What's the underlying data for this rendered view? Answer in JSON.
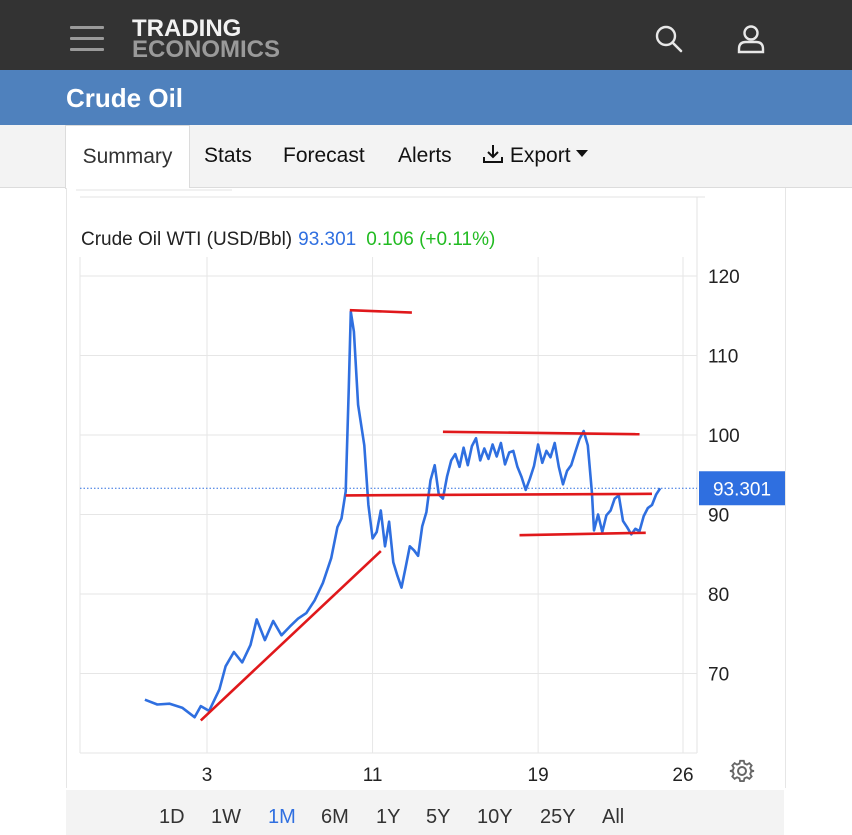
{
  "header": {
    "logo_line1": "TRADING",
    "logo_line2": "ECONOMICS",
    "icons": [
      "hamburger-menu-icon",
      "search-icon",
      "user-icon"
    ]
  },
  "page": {
    "title": "Crude Oil"
  },
  "tabs": [
    {
      "label": "Summary",
      "active": true
    },
    {
      "label": "Stats"
    },
    {
      "label": "Forecast"
    },
    {
      "label": "Alerts"
    },
    {
      "label": "Export",
      "icon": "download-icon",
      "dropdown": true
    }
  ],
  "quote": {
    "name": "Crude Oil WTI (USD/Bbl)",
    "price": "93.301",
    "change": "0.106",
    "change_pct": "(+0.11%)"
  },
  "colors": {
    "accent": "#4f81bd",
    "line": "#2f6fe0",
    "positive": "#22bb22",
    "annotation": "#e0181b"
  },
  "chart_data": {
    "type": "line",
    "title": "Crude Oil WTI (USD/Bbl)",
    "x_ticks": [
      "3",
      "11",
      "19",
      "26"
    ],
    "y_ticks": [
      70,
      80,
      90,
      100,
      110,
      120
    ],
    "ylim": [
      60,
      125
    ],
    "last_value_label": "93.301",
    "grid": true,
    "series": [
      {
        "values": [
          [
            -3.0,
            66.7
          ],
          [
            -2.4,
            66.1
          ],
          [
            -1.8,
            66.2
          ],
          [
            -1.2,
            65.7
          ],
          [
            -0.6,
            64.5
          ],
          [
            -0.3,
            65.9
          ],
          [
            0.1,
            65.3
          ],
          [
            0.6,
            68.0
          ],
          [
            0.9,
            70.9
          ],
          [
            1.3,
            72.7
          ],
          [
            1.7,
            71.4
          ],
          [
            2.1,
            73.6
          ],
          [
            2.4,
            76.8
          ],
          [
            2.8,
            74.2
          ],
          [
            3.2,
            76.6
          ],
          [
            3.6,
            74.8
          ],
          [
            4.0,
            75.9
          ],
          [
            4.4,
            76.9
          ],
          [
            4.8,
            77.6
          ],
          [
            5.2,
            79.2
          ],
          [
            5.6,
            81.4
          ],
          [
            6.0,
            84.5
          ],
          [
            6.3,
            88.4
          ],
          [
            6.5,
            89.5
          ],
          [
            6.7,
            92.9
          ],
          [
            6.85,
            106.0
          ],
          [
            6.95,
            115.5
          ],
          [
            7.1,
            113.0
          ],
          [
            7.3,
            103.8
          ],
          [
            7.6,
            98.7
          ],
          [
            7.8,
            91.2
          ],
          [
            8.0,
            87.0
          ],
          [
            8.2,
            87.8
          ],
          [
            8.4,
            90.5
          ],
          [
            8.6,
            86.0
          ],
          [
            8.8,
            89.1
          ],
          [
            9.0,
            84.0
          ],
          [
            9.2,
            82.3
          ],
          [
            9.4,
            80.8
          ],
          [
            9.6,
            83.4
          ],
          [
            9.8,
            86.0
          ],
          [
            10.0,
            85.5
          ],
          [
            10.2,
            84.8
          ],
          [
            10.4,
            88.5
          ],
          [
            10.6,
            90.3
          ],
          [
            10.8,
            94.3
          ],
          [
            11.0,
            96.2
          ],
          [
            11.2,
            92.5
          ],
          [
            11.4,
            92.0
          ],
          [
            11.6,
            94.8
          ],
          [
            11.8,
            96.8
          ],
          [
            12.0,
            97.6
          ],
          [
            12.2,
            96.0
          ],
          [
            12.4,
            98.4
          ],
          [
            12.6,
            96.2
          ],
          [
            12.8,
            98.6
          ],
          [
            13.0,
            99.6
          ],
          [
            13.2,
            96.8
          ],
          [
            13.4,
            98.3
          ],
          [
            13.6,
            97.0
          ],
          [
            13.8,
            98.8
          ],
          [
            14.0,
            97.3
          ],
          [
            14.2,
            99.0
          ],
          [
            14.4,
            96.3
          ],
          [
            14.6,
            97.8
          ],
          [
            14.8,
            98.0
          ],
          [
            15.0,
            96.0
          ],
          [
            15.2,
            94.7
          ],
          [
            15.4,
            93.1
          ],
          [
            15.6,
            94.5
          ],
          [
            15.8,
            96.1
          ],
          [
            16.0,
            98.8
          ],
          [
            16.2,
            96.5
          ],
          [
            16.4,
            98.0
          ],
          [
            16.6,
            97.2
          ],
          [
            16.8,
            99.0
          ],
          [
            17.0,
            96.0
          ],
          [
            17.2,
            93.8
          ],
          [
            17.4,
            95.5
          ],
          [
            17.6,
            96.2
          ],
          [
            17.8,
            97.9
          ],
          [
            18.0,
            99.5
          ],
          [
            18.2,
            100.5
          ],
          [
            18.4,
            98.7
          ],
          [
            18.6,
            92.8
          ],
          [
            18.7,
            88.0
          ],
          [
            18.9,
            90.0
          ],
          [
            19.1,
            87.8
          ],
          [
            19.3,
            89.9
          ],
          [
            19.5,
            90.5
          ],
          [
            19.7,
            92.0
          ],
          [
            19.9,
            92.4
          ],
          [
            20.1,
            89.2
          ],
          [
            20.3,
            88.4
          ],
          [
            20.5,
            87.5
          ],
          [
            20.7,
            88.2
          ],
          [
            20.9,
            87.9
          ],
          [
            21.1,
            89.8
          ],
          [
            21.3,
            90.8
          ],
          [
            21.5,
            91.2
          ],
          [
            21.7,
            92.5
          ],
          [
            21.9,
            93.301
          ]
        ]
      }
    ],
    "annotations": [
      {
        "type": "trendline",
        "from": [
          -0.3,
          64.1
        ],
        "to": [
          8.4,
          85.4
        ]
      },
      {
        "type": "horizontal",
        "from": [
          6.9,
          115.7
        ],
        "to": [
          9.9,
          115.4
        ]
      },
      {
        "type": "horizontal",
        "from": [
          11.4,
          100.4
        ],
        "to": [
          20.9,
          100.1
        ]
      },
      {
        "type": "horizontal",
        "from": [
          6.7,
          92.4
        ],
        "to": [
          21.5,
          92.6
        ]
      },
      {
        "type": "horizontal",
        "from": [
          15.1,
          87.4
        ],
        "to": [
          21.2,
          87.7
        ]
      }
    ]
  },
  "ranges": [
    {
      "label": "1D"
    },
    {
      "label": "1W"
    },
    {
      "label": "1M",
      "active": true
    },
    {
      "label": "6M"
    },
    {
      "label": "1Y"
    },
    {
      "label": "5Y"
    },
    {
      "label": "10Y"
    },
    {
      "label": "25Y"
    },
    {
      "label": "All"
    }
  ]
}
